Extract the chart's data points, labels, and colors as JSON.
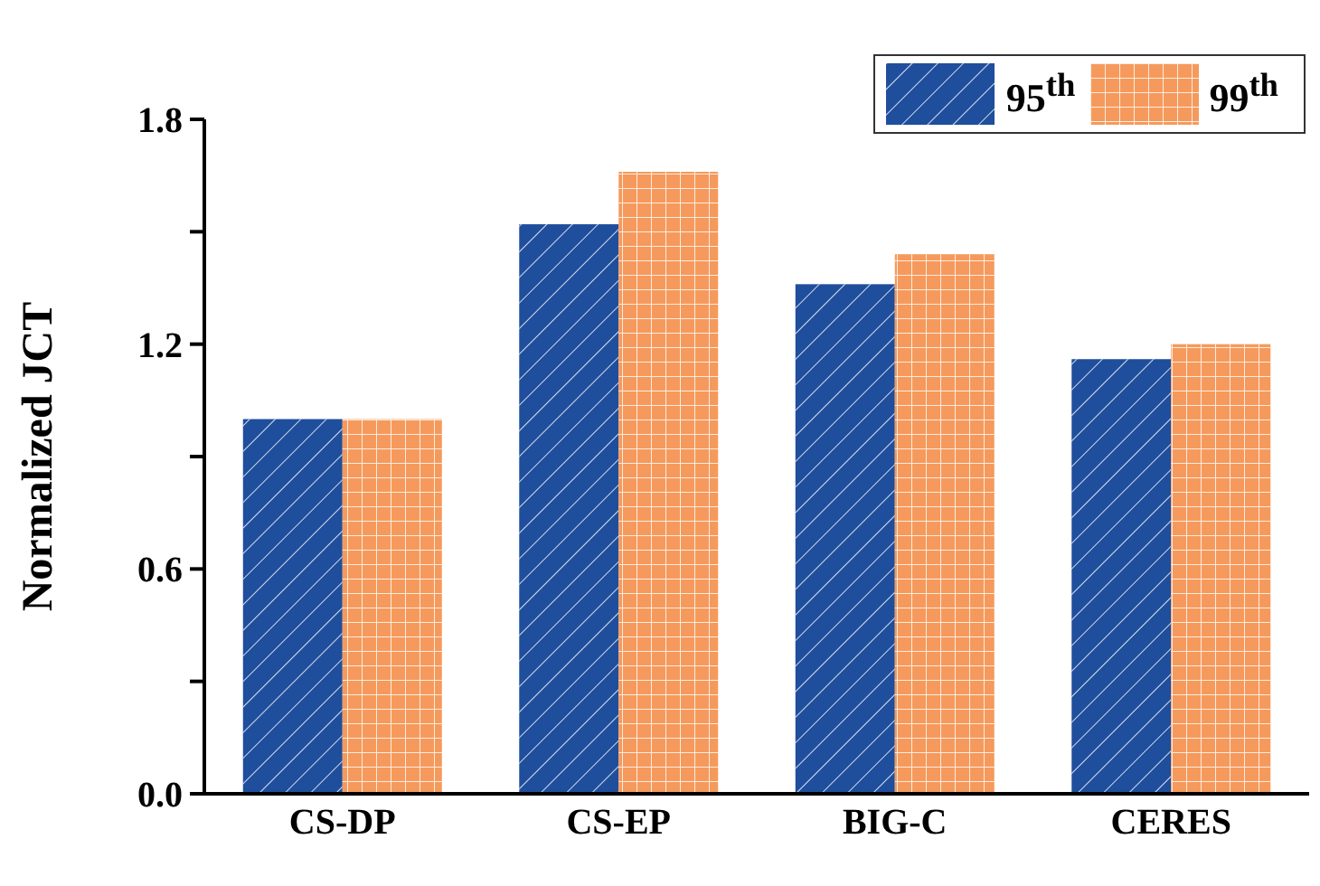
{
  "chart_data": {
    "type": "bar",
    "ylabel": "Normalized JCT",
    "categories": [
      "CS-DP",
      "CS-EP",
      "BIG-C",
      "CERES"
    ],
    "series": [
      {
        "name": "95$^{th}$",
        "color": "#1f4e9c",
        "values": [
          1.0,
          1.52,
          1.36,
          1.16
        ]
      },
      {
        "name": "99$^{th}$",
        "color": "#f59a5c",
        "values": [
          1.0,
          1.66,
          1.44,
          1.2
        ]
      }
    ],
    "ylim": [
      0,
      1.8
    ],
    "yticks": [
      {
        "value": 0,
        "label": "0.0"
      },
      {
        "value": 0.3,
        "label": null
      },
      {
        "value": 0.6,
        "label": "0.6"
      },
      {
        "value": 0.9,
        "label": null
      },
      {
        "value": 1.2,
        "label": "1.2"
      },
      {
        "value": 1.5,
        "label": null
      },
      {
        "value": 1.8,
        "label": "1.8"
      }
    ],
    "legend": "top right",
    "grid": false
  }
}
